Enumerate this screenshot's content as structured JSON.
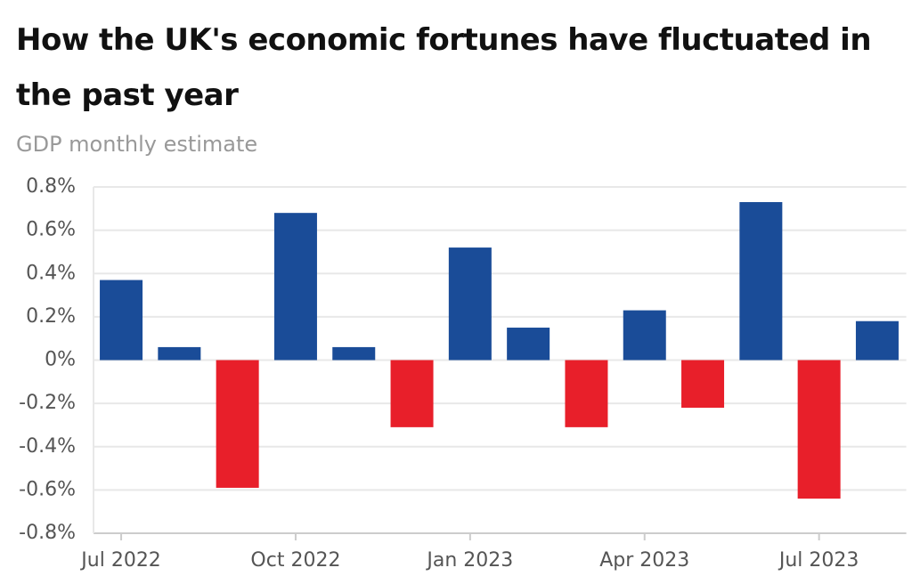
{
  "chart_data": {
    "type": "bar",
    "title": "How the UK's economic fortunes have fluctuated in the past year",
    "subtitle": "GDP monthly estimate",
    "categories": [
      "Jul 2022",
      null,
      null,
      "Oct 2022",
      null,
      null,
      "Jan 2023",
      null,
      null,
      "Apr 2023",
      null,
      null,
      "Jul 2023",
      null
    ],
    "values": [
      0.37,
      0.06,
      -0.59,
      0.68,
      0.06,
      -0.31,
      0.52,
      0.15,
      -0.31,
      0.23,
      -0.22,
      0.73,
      -0.64,
      0.18
    ],
    "colors": {
      "positive": "#1a4c98",
      "negative": "#e81f2a"
    },
    "ylim": [
      -0.8,
      0.8
    ],
    "yticks": [
      {
        "value": -0.8,
        "label": "-0.8%"
      },
      {
        "value": -0.6,
        "label": "-0.6%"
      },
      {
        "value": -0.4,
        "label": "-0.4%"
      },
      {
        "value": -0.2,
        "label": "-0.2%"
      },
      {
        "value": 0,
        "label": "0%"
      },
      {
        "value": 0.2,
        "label": "0.2%"
      },
      {
        "value": 0.4,
        "label": "0.4%"
      },
      {
        "value": 0.6,
        "label": "0.6%"
      },
      {
        "value": 0.8,
        "label": "0.8%"
      }
    ],
    "grid": true
  }
}
